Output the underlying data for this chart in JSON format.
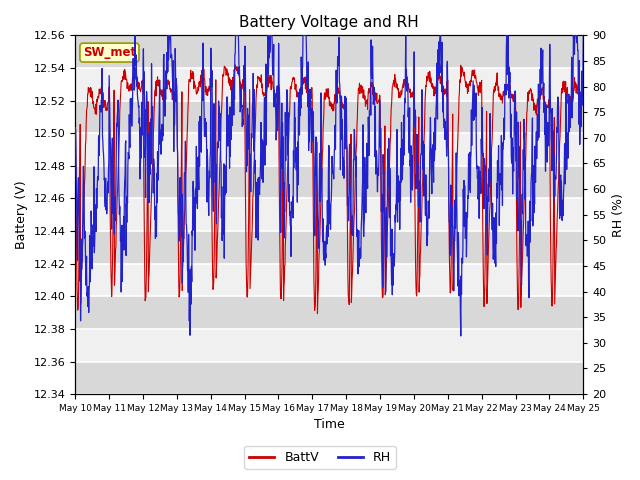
{
  "title": "Battery Voltage and RH",
  "xlabel": "Time",
  "ylabel_left": "Battery (V)",
  "ylabel_right": "RH (%)",
  "station_label": "SW_met",
  "ylim_left": [
    12.34,
    12.56
  ],
  "ylim_right": [
    20,
    90
  ],
  "yticks_left": [
    12.34,
    12.36,
    12.38,
    12.4,
    12.42,
    12.44,
    12.46,
    12.48,
    12.5,
    12.52,
    12.54,
    12.56
  ],
  "yticks_right": [
    20,
    25,
    30,
    35,
    40,
    45,
    50,
    55,
    60,
    65,
    70,
    75,
    80,
    85,
    90
  ],
  "xtick_labels": [
    "May 10",
    "May 11",
    "May 12",
    "May 13",
    "May 14",
    "May 15",
    "May 16",
    "May 17",
    "May 18",
    "May 19",
    "May 20",
    "May 21",
    "May 22",
    "May 23",
    "May 24",
    "May 25"
  ],
  "color_battv": "#cc0000",
  "color_rh": "#2222cc",
  "legend_battv": "BattV",
  "legend_rh": "RH",
  "background_color": "#ffffff",
  "plot_bg_light": "#f0f0f0",
  "plot_bg_dark": "#d8d8d8",
  "grid_color": "#ffffff",
  "station_box_color": "#ffffcc",
  "station_box_edge": "#999900",
  "station_text_color": "#cc0000",
  "n_days": 15,
  "n_pts_per_day": 96
}
